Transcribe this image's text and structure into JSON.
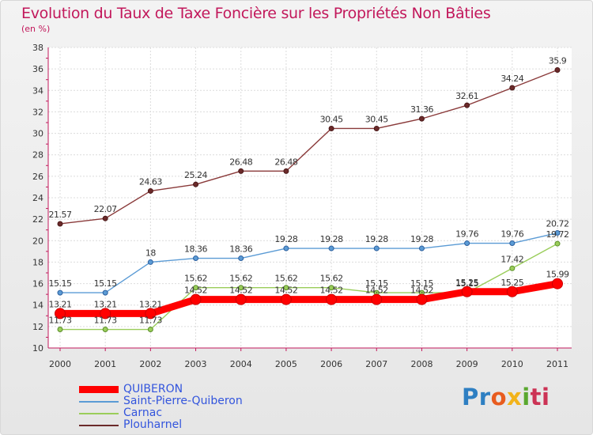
{
  "chart_data": {
    "type": "line",
    "title": "Evolution du Taux de Taxe Foncière sur les Propriétés Non Bâties",
    "unit_label": "(en %)",
    "xlabel": "",
    "ylabel": "",
    "ylim": [
      10,
      38
    ],
    "y_ticks": [
      "10",
      "12",
      "14",
      "16",
      "18",
      "20",
      "22",
      "24",
      "26",
      "28",
      "30",
      "32",
      "34",
      "36",
      "38"
    ],
    "categories": [
      "2000",
      "2001",
      "2002",
      "2003",
      "2004",
      "2005",
      "2006",
      "2007",
      "2008",
      "2009",
      "2010",
      "2011"
    ],
    "grid": true,
    "series": [
      {
        "name": "QUIBERON",
        "color": "#ff0000",
        "values": [
          13.21,
          13.21,
          13.21,
          14.52,
          14.52,
          14.52,
          14.52,
          14.52,
          14.52,
          15.25,
          15.25,
          15.99
        ],
        "labels": [
          "13.21",
          "13.21",
          "13.21",
          "14.52",
          "14.52",
          "14.52",
          "14.52",
          "14.52",
          "14.52",
          "15.25",
          "15.25",
          "15.99"
        ]
      },
      {
        "name": "Saint-Pierre-Quiberon",
        "color": "#5b9bd5",
        "values": [
          15.15,
          15.15,
          18,
          18.36,
          18.36,
          19.28,
          19.28,
          19.28,
          19.28,
          19.76,
          19.76,
          20.72
        ],
        "labels": [
          "15.15",
          "15.15",
          "18",
          "18.36",
          "18.36",
          "19.28",
          "19.28",
          "19.28",
          "19.28",
          "19.76",
          "19.76",
          "20.72"
        ]
      },
      {
        "name": "Carnac",
        "color": "#9acd5a",
        "values": [
          11.73,
          11.73,
          11.73,
          15.62,
          15.62,
          15.62,
          15.62,
          15.15,
          15.15,
          15.15,
          17.42,
          19.72
        ],
        "labels": [
          "11.73",
          "11.73",
          "11.73",
          "15.62",
          "15.62",
          "15.62",
          "15.62",
          "15.15",
          "15.15",
          "15.15",
          "17.42",
          "19.72"
        ]
      },
      {
        "name": "Plouharnel",
        "color": "#6b2a2a",
        "values": [
          21.57,
          22.07,
          24.63,
          25.24,
          26.48,
          26.48,
          30.45,
          30.45,
          31.36,
          32.61,
          34.24,
          35.9
        ],
        "labels": [
          "21.57",
          "22.07",
          "24.63",
          "25.24",
          "26.48",
          "26.48",
          "30.45",
          "30.45",
          "31.36",
          "32.61",
          "34.24",
          "35.9"
        ]
      }
    ]
  },
  "logo": {
    "letters": [
      "Pr",
      "o",
      "x",
      "i",
      "ti"
    ]
  }
}
